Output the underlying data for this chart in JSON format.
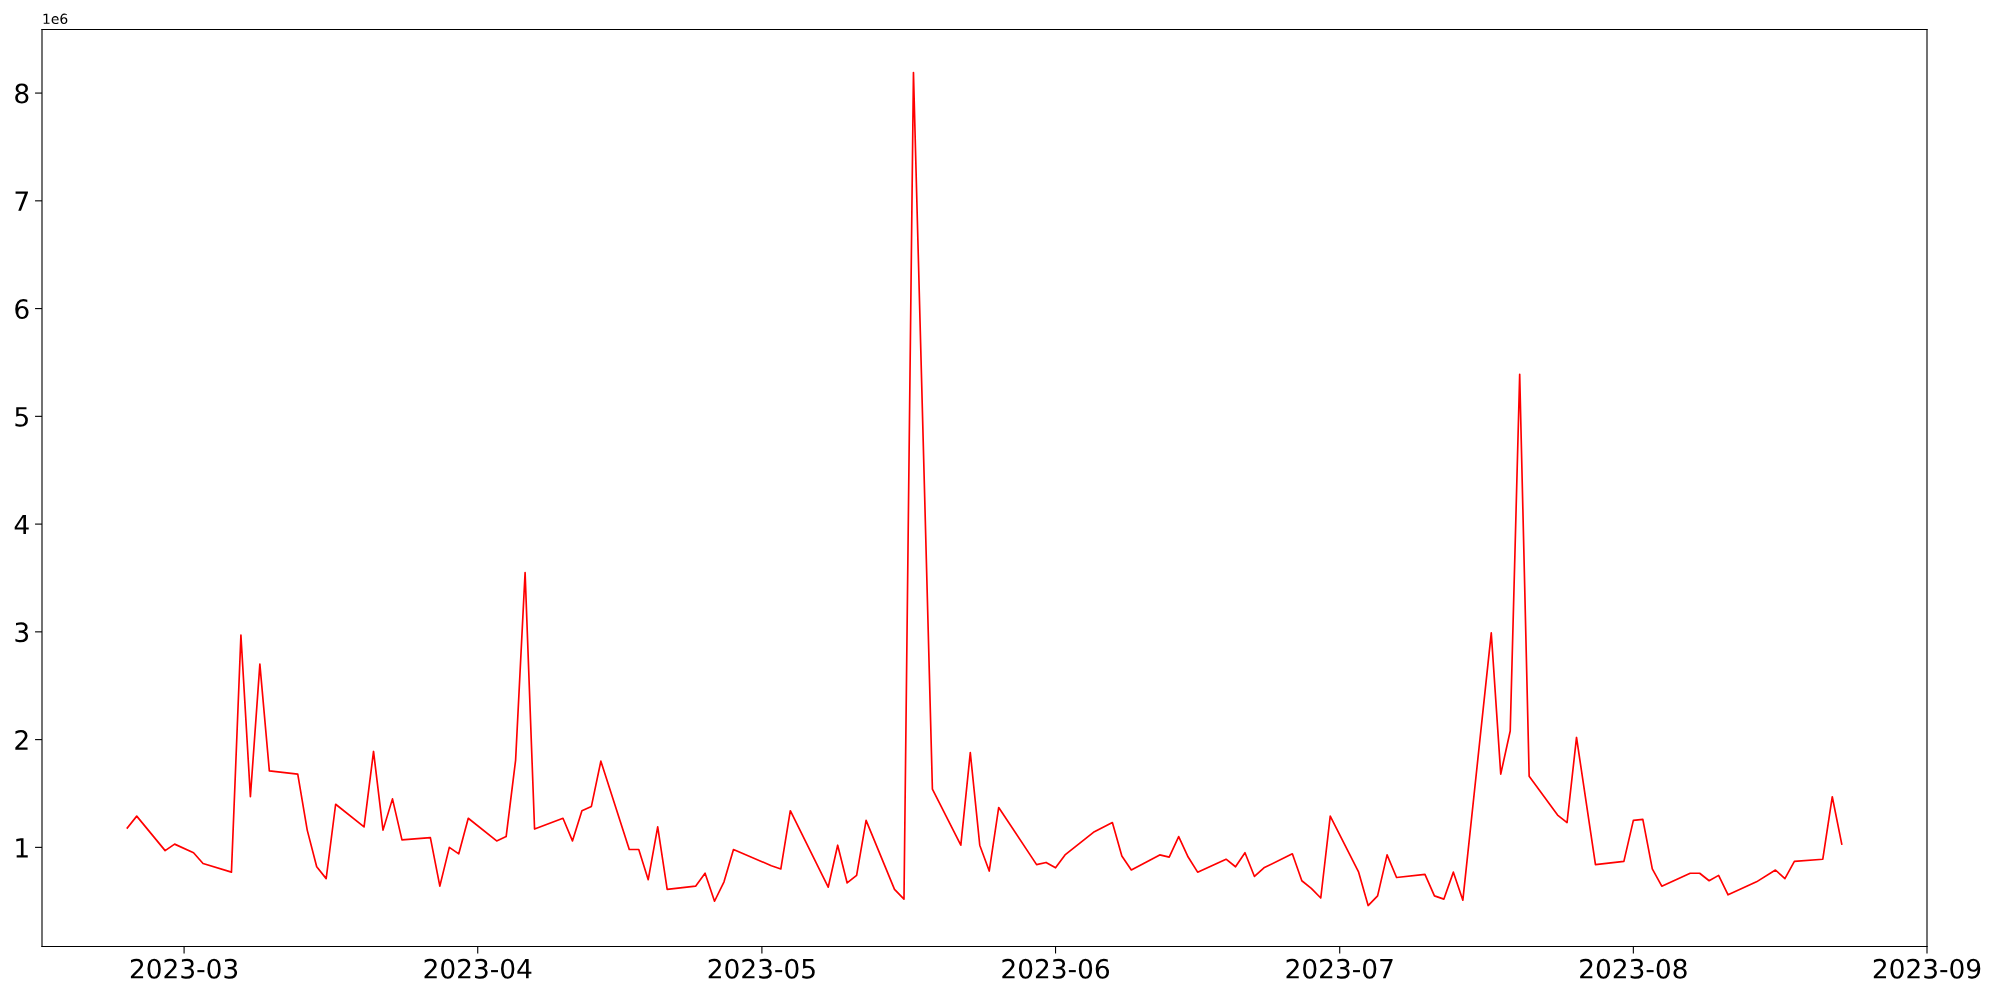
{
  "chart_data": {
    "type": "line",
    "x": [
      "2023-02-23",
      "2023-02-24",
      "2023-02-27",
      "2023-02-28",
      "2023-03-02",
      "2023-03-03",
      "2023-03-06",
      "2023-03-07",
      "2023-03-08",
      "2023-03-09",
      "2023-03-10",
      "2023-03-13",
      "2023-03-14",
      "2023-03-15",
      "2023-03-16",
      "2023-03-17",
      "2023-03-20",
      "2023-03-21",
      "2023-03-22",
      "2023-03-23",
      "2023-03-24",
      "2023-03-27",
      "2023-03-28",
      "2023-03-29",
      "2023-03-30",
      "2023-03-31",
      "2023-04-03",
      "2023-04-04",
      "2023-04-05",
      "2023-04-06",
      "2023-04-07",
      "2023-04-10",
      "2023-04-11",
      "2023-04-12",
      "2023-04-13",
      "2023-04-14",
      "2023-04-17",
      "2023-04-18",
      "2023-04-19",
      "2023-04-20",
      "2023-04-21",
      "2023-04-24",
      "2023-04-25",
      "2023-04-26",
      "2023-04-27",
      "2023-04-28",
      "2023-05-02",
      "2023-05-03",
      "2023-05-04",
      "2023-05-08",
      "2023-05-09",
      "2023-05-10",
      "2023-05-11",
      "2023-05-12",
      "2023-05-15",
      "2023-05-16",
      "2023-05-17",
      "2023-05-19",
      "2023-05-22",
      "2023-05-23",
      "2023-05-24",
      "2023-05-25",
      "2023-05-26",
      "2023-05-30",
      "2023-05-31",
      "2023-06-01",
      "2023-06-02",
      "2023-06-05",
      "2023-06-07",
      "2023-06-08",
      "2023-06-09",
      "2023-06-12",
      "2023-06-13",
      "2023-06-14",
      "2023-06-15",
      "2023-06-16",
      "2023-06-19",
      "2023-06-20",
      "2023-06-21",
      "2023-06-22",
      "2023-06-23",
      "2023-06-26",
      "2023-06-27",
      "2023-06-28",
      "2023-06-29",
      "2023-06-30",
      "2023-07-03",
      "2023-07-04",
      "2023-07-05",
      "2023-07-06",
      "2023-07-07",
      "2023-07-10",
      "2023-07-11",
      "2023-07-12",
      "2023-07-13",
      "2023-07-14",
      "2023-07-17",
      "2023-07-18",
      "2023-07-19",
      "2023-07-20",
      "2023-07-21",
      "2023-07-24",
      "2023-07-25",
      "2023-07-26",
      "2023-07-28",
      "2023-07-31",
      "2023-08-01",
      "2023-08-02",
      "2023-08-03",
      "2023-08-04",
      "2023-08-07",
      "2023-08-08",
      "2023-08-09",
      "2023-08-10",
      "2023-08-11",
      "2023-08-14",
      "2023-08-16",
      "2023-08-17",
      "2023-08-18",
      "2023-08-21",
      "2023-08-22",
      "2023-08-23"
    ],
    "series": [
      {
        "color": "#ff0000",
        "values": [
          1.18,
          1.29,
          0.97,
          1.03,
          0.95,
          0.85,
          0.77,
          2.97,
          1.47,
          2.7,
          1.71,
          1.68,
          1.16,
          0.82,
          0.71,
          1.4,
          1.19,
          1.89,
          1.16,
          1.45,
          1.07,
          1.09,
          0.64,
          1.0,
          0.94,
          1.27,
          1.06,
          1.1,
          1.81,
          3.55,
          1.17,
          1.27,
          1.06,
          1.34,
          1.38,
          1.8,
          0.98,
          0.98,
          0.7,
          1.19,
          0.61,
          0.64,
          0.76,
          0.5,
          0.68,
          0.98,
          0.83,
          0.8,
          1.34,
          0.63,
          1.02,
          0.67,
          0.74,
          1.25,
          0.61,
          0.52,
          8.19,
          1.54,
          1.02,
          1.88,
          1.02,
          0.78,
          1.37,
          0.84,
          0.86,
          0.81,
          0.93,
          1.14,
          1.23,
          0.92,
          0.79,
          0.93,
          0.91,
          1.1,
          0.91,
          0.77,
          0.89,
          0.82,
          0.95,
          0.73,
          0.81,
          0.94,
          0.69,
          0.62,
          0.53,
          1.29,
          0.77,
          0.46,
          0.55,
          0.93,
          0.72,
          0.75,
          0.55,
          0.52,
          0.77,
          0.51,
          2.99,
          1.68,
          2.08,
          5.39,
          1.66,
          1.3,
          1.23,
          2.02,
          0.84,
          0.87,
          1.25,
          1.26,
          0.8,
          0.64,
          0.76,
          0.76,
          0.69,
          0.74,
          0.56,
          0.68,
          0.79,
          0.71,
          0.87,
          0.89,
          1.47,
          1.03
        ]
      }
    ],
    "xlim": [
      "2023-02-14",
      "2023-09-01"
    ],
    "xticks": [
      "2023-03",
      "2023-04",
      "2023-05",
      "2023-06",
      "2023-07",
      "2023-08",
      "2023-09"
    ],
    "ylim": [
      0.08,
      8.59
    ],
    "yticks": [
      1,
      2,
      3,
      4,
      5,
      6,
      7,
      8
    ],
    "annotations": [
      "1e6"
    ],
    "grid": false,
    "marker": "none",
    "line_style": "solid"
  }
}
